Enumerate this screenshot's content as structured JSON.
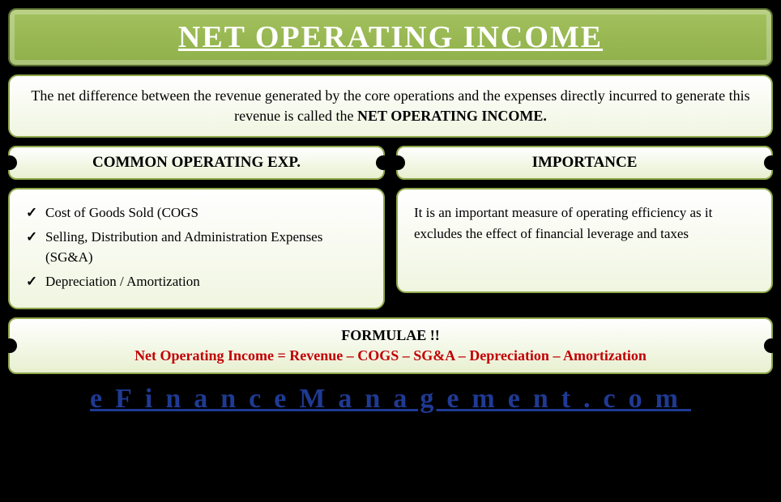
{
  "colors": {
    "page_bg": "#000000",
    "title_bg_top": "#a3c15e",
    "title_bg_bottom": "#8fb04a",
    "title_border": "#556b2f",
    "title_text": "#ffffff",
    "panel_bg_top": "#ffffff",
    "panel_bg_bottom": "#f0f5e0",
    "panel_border": "#8fa84a",
    "body_text": "#000000",
    "formula_text": "#c00000",
    "footer_link": "#1f3a93"
  },
  "typography": {
    "family": "Georgia, serif",
    "title_size": 38,
    "body_size": 18,
    "header_size": 19,
    "formula_size": 18,
    "footer_size": 34,
    "footer_letter_spacing": 16
  },
  "title": "NET OPERATING INCOME",
  "definition": {
    "text": "The net difference between the revenue generated by the core operations and the expenses directly incurred to generate this revenue is called the ",
    "bold": "NET OPERATING INCOME."
  },
  "sections": {
    "left": {
      "header": "COMMON OPERATING EXP.",
      "items": [
        "Cost of Goods Sold (COGS",
        "Selling, Distribution and Administration Expenses (SG&A)",
        "Depreciation / Amortization"
      ]
    },
    "right": {
      "header": "IMPORTANCE",
      "text": "It is an important measure of operating efficiency as it excludes the effect of financial leverage and taxes"
    }
  },
  "formula": {
    "header": "FORMULAE !!",
    "text": "Net Operating Income = Revenue – COGS – SG&A – Depreciation – Amortization"
  },
  "footer": "eFinanceManagement.com"
}
